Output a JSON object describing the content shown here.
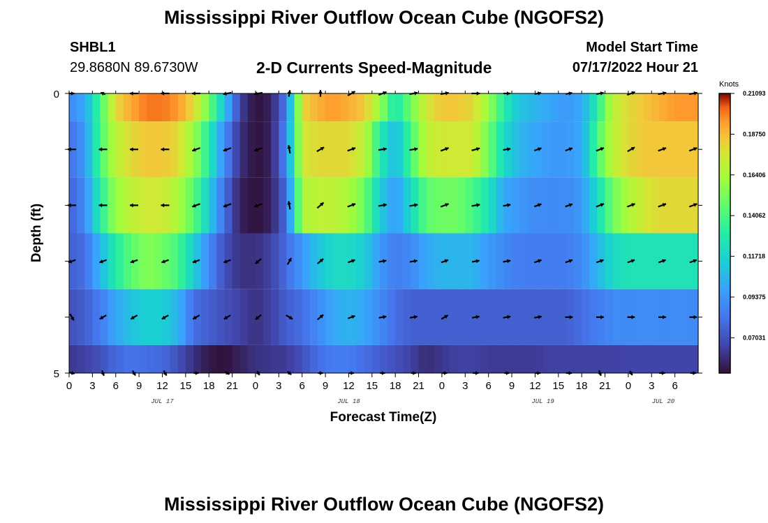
{
  "header": {
    "title": "Mississippi River Outflow Ocean Cube (NGOFS2)",
    "station_id": "SHBL1",
    "station_coords": "29.8680N  89.6730W",
    "subtitle": "2-D Currents Speed-Magnitude",
    "model_start_label": "Model Start Time",
    "model_start_value": "07/17/2022 Hour 21"
  },
  "footer": {
    "title": "Mississippi River Outflow Ocean Cube (NGOFS2)"
  },
  "chart_data": {
    "type": "heatmap",
    "title": "2-D Currents Speed-Magnitude",
    "xlabel": "Forecast Time(Z)",
    "ylabel": "Depth (ft)",
    "colorbar_label": "Knots",
    "colorbar_ticks": [
      "0.21093",
      "0.18750",
      "0.16406",
      "0.14062",
      "0.11718",
      "0.09375",
      "0.07031"
    ],
    "color_range": [
      0.05,
      0.21093
    ],
    "xlim_hours": [
      0,
      81
    ],
    "ylim": [
      0,
      5
    ],
    "y_tick_labels": [
      "0",
      "5"
    ],
    "y_tick_values": [
      0,
      1,
      2,
      3,
      4,
      5
    ],
    "x_tick_labels": [
      "0",
      "3",
      "6",
      "9",
      "12",
      "15",
      "18",
      "21",
      "0",
      "3",
      "6",
      "9",
      "12",
      "15",
      "18",
      "21",
      "0",
      "3",
      "6",
      "9",
      "12",
      "15",
      "18",
      "21",
      "0",
      "3",
      "6"
    ],
    "date_labels": [
      {
        "label": "JUL 17",
        "hour": 12
      },
      {
        "label": "JUL 18",
        "hour": 36
      },
      {
        "label": "JUL 19",
        "hour": 61
      },
      {
        "label": "JUL 20",
        "hour": 76.5
      }
    ],
    "layer_depths": [
      0,
      1,
      2,
      3,
      4,
      5
    ],
    "time_hours": [
      0,
      2,
      4,
      6,
      8,
      10,
      12,
      14,
      16,
      18,
      20,
      22,
      24,
      26,
      28,
      30,
      32,
      34,
      36,
      38,
      40,
      42,
      44,
      46,
      48,
      50,
      52,
      54,
      56,
      58,
      60,
      62,
      64,
      66,
      68,
      70,
      72,
      74,
      76,
      78,
      80,
      81
    ],
    "speed": [
      [
        0.09,
        0.1,
        0.14,
        0.18,
        0.192,
        0.2,
        0.2,
        0.195,
        0.18,
        0.15,
        0.11,
        0.065,
        0.05,
        0.055,
        0.085,
        0.18,
        0.19,
        0.195,
        0.19,
        0.185,
        0.16,
        0.125,
        0.15,
        0.175,
        0.185,
        0.185,
        0.18,
        0.16,
        0.13,
        0.11,
        0.105,
        0.1,
        0.095,
        0.1,
        0.13,
        0.17,
        0.18,
        0.185,
        0.19,
        0.195,
        0.195,
        0.195
      ],
      [
        0.08,
        0.095,
        0.14,
        0.17,
        0.18,
        0.185,
        0.185,
        0.18,
        0.16,
        0.13,
        0.09,
        0.06,
        0.05,
        0.055,
        0.09,
        0.175,
        0.18,
        0.18,
        0.18,
        0.17,
        0.13,
        0.105,
        0.14,
        0.17,
        0.175,
        0.175,
        0.175,
        0.15,
        0.12,
        0.105,
        0.1,
        0.095,
        0.095,
        0.1,
        0.14,
        0.17,
        0.18,
        0.185,
        0.185,
        0.185,
        0.185,
        0.185
      ],
      [
        0.075,
        0.09,
        0.13,
        0.16,
        0.17,
        0.175,
        0.175,
        0.165,
        0.145,
        0.115,
        0.08,
        0.055,
        0.05,
        0.055,
        0.08,
        0.165,
        0.17,
        0.17,
        0.165,
        0.15,
        0.115,
        0.095,
        0.12,
        0.145,
        0.15,
        0.15,
        0.14,
        0.125,
        0.1,
        0.095,
        0.09,
        0.09,
        0.09,
        0.095,
        0.12,
        0.15,
        0.165,
        0.175,
        0.18,
        0.18,
        0.18,
        0.18
      ],
      [
        0.075,
        0.08,
        0.105,
        0.13,
        0.145,
        0.155,
        0.15,
        0.14,
        0.115,
        0.09,
        0.07,
        0.06,
        0.06,
        0.065,
        0.08,
        0.095,
        0.11,
        0.12,
        0.12,
        0.115,
        0.095,
        0.085,
        0.09,
        0.1,
        0.105,
        0.105,
        0.105,
        0.095,
        0.09,
        0.085,
        0.085,
        0.085,
        0.085,
        0.09,
        0.105,
        0.12,
        0.125,
        0.125,
        0.125,
        0.125,
        0.125,
        0.125
      ],
      [
        0.07,
        0.075,
        0.085,
        0.1,
        0.11,
        0.115,
        0.115,
        0.105,
        0.08,
        0.075,
        0.07,
        0.065,
        0.06,
        0.065,
        0.075,
        0.08,
        0.09,
        0.1,
        0.105,
        0.1,
        0.09,
        0.08,
        0.075,
        0.075,
        0.075,
        0.075,
        0.075,
        0.075,
        0.075,
        0.075,
        0.075,
        0.075,
        0.075,
        0.08,
        0.085,
        0.09,
        0.09,
        0.09,
        0.09,
        0.09,
        0.09,
        0.09
      ],
      [
        0.062,
        0.065,
        0.07,
        0.078,
        0.082,
        0.08,
        0.078,
        0.07,
        0.06,
        0.052,
        0.05,
        0.055,
        0.06,
        0.062,
        0.063,
        0.07,
        0.08,
        0.085,
        0.085,
        0.08,
        0.075,
        0.07,
        0.065,
        0.058,
        0.062,
        0.065,
        0.065,
        0.063,
        0.063,
        0.063,
        0.063,
        0.065,
        0.065,
        0.065,
        0.065,
        0.065,
        0.066,
        0.066,
        0.066,
        0.066,
        0.066,
        0.066
      ]
    ],
    "arrow_times": [
      0,
      4,
      8,
      12,
      16,
      20,
      24,
      28,
      32,
      36,
      40,
      44,
      48,
      52,
      56,
      60,
      64,
      68,
      72,
      76,
      80
    ],
    "arrow_depths": [
      0,
      1,
      2,
      3,
      4,
      5
    ],
    "arrow_angles_deg": [
      [
        0,
        160,
        180,
        180,
        180,
        190,
        190,
        80,
        90,
        30,
        20,
        10,
        10,
        0,
        0,
        10,
        10,
        10,
        20,
        10,
        10
      ],
      [
        180,
        180,
        180,
        180,
        200,
        200,
        200,
        100,
        30,
        20,
        10,
        10,
        20,
        15,
        10,
        20,
        20,
        20,
        30,
        20,
        20
      ],
      [
        180,
        180,
        180,
        180,
        200,
        200,
        200,
        100,
        40,
        20,
        10,
        10,
        20,
        10,
        10,
        20,
        20,
        20,
        20,
        20,
        20
      ],
      [
        200,
        200,
        200,
        200,
        200,
        200,
        220,
        60,
        40,
        20,
        10,
        10,
        20,
        10,
        10,
        20,
        20,
        20,
        20,
        20,
        20
      ],
      [
        -60,
        -150,
        -150,
        -150,
        -150,
        -150,
        -140,
        -30,
        40,
        20,
        10,
        10,
        30,
        10,
        10,
        10,
        0,
        0,
        0,
        0,
        0
      ],
      [
        -10,
        -70,
        -60,
        -60,
        0,
        -30,
        -60,
        -40,
        0,
        0,
        0,
        0,
        0,
        0,
        0,
        0,
        0,
        -70,
        -60,
        0,
        0
      ]
    ],
    "arrow_lengths": [
      [
        0.6,
        0.6,
        1,
        1,
        1,
        1,
        1,
        0.8,
        0.8,
        1,
        1,
        1,
        1,
        1,
        0.8,
        0.8,
        0.8,
        0.9,
        1,
        1,
        1
      ],
      [
        1,
        1,
        1,
        1,
        1,
        1,
        1,
        1,
        1,
        1,
        1,
        1,
        1,
        1,
        0.9,
        0.9,
        0.9,
        1,
        1,
        1,
        1
      ],
      [
        1,
        1,
        1,
        1,
        1,
        1,
        1,
        1,
        1,
        1,
        1,
        1,
        1,
        1,
        0.9,
        0.9,
        0.9,
        1,
        1,
        1,
        1
      ],
      [
        0.9,
        0.9,
        0.9,
        0.9,
        0.9,
        0.9,
        0.9,
        0.9,
        0.9,
        0.9,
        0.9,
        0.9,
        0.9,
        0.9,
        0.9,
        0.9,
        0.9,
        0.9,
        0.9,
        0.9,
        0.9
      ],
      [
        0.9,
        0.9,
        0.9,
        0.9,
        0.9,
        0.9,
        0.9,
        0.9,
        0.9,
        0.9,
        0.9,
        0.9,
        0.9,
        0.9,
        0.9,
        0.9,
        0.9,
        0.9,
        0.9,
        0.9,
        0.9
      ],
      [
        0.7,
        0.7,
        0.7,
        0.7,
        0.6,
        0.6,
        0.6,
        0.6,
        0.6,
        0.6,
        0.6,
        0.6,
        0.6,
        0.7,
        0.6,
        0.6,
        0.7,
        0.7,
        0.6,
        0.7,
        0.7
      ]
    ]
  }
}
